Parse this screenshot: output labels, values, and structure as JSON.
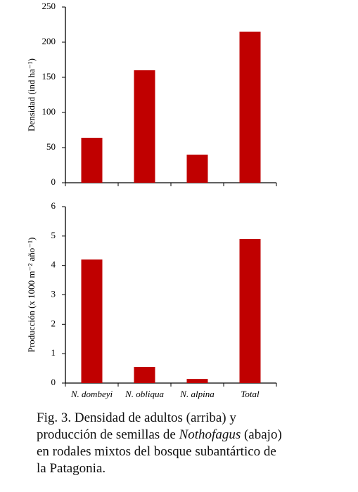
{
  "chart_data": [
    {
      "type": "bar",
      "y_label": "Densidad (ind ha⁻¹)",
      "categories": [
        null,
        null,
        null,
        null
      ],
      "values": [
        64,
        160,
        40,
        215
      ],
      "color": "#c00000",
      "ylim": [
        0,
        250
      ],
      "yticks": [
        0,
        50,
        100,
        150,
        200,
        250
      ]
    },
    {
      "type": "bar",
      "y_label": "Producción (x 1000 m⁻² año⁻¹)",
      "categories": [
        "N. dombeyi",
        "N. obliqua",
        "N. alpina",
        "Total"
      ],
      "values": [
        4.2,
        0.55,
        0.14,
        4.9
      ],
      "color": "#c00000",
      "ylim": [
        0,
        6
      ],
      "yticks": [
        0,
        1,
        2,
        3,
        4,
        5,
        6
      ]
    }
  ],
  "caption": [
    "Fig. 3. Densidad de adultos (arriba) y",
    "producción de semillas de",
    "Nothofagus",
    "(abajo)",
    "en rodales mixtos del bosque subantártico de",
    "la Patagonia."
  ]
}
